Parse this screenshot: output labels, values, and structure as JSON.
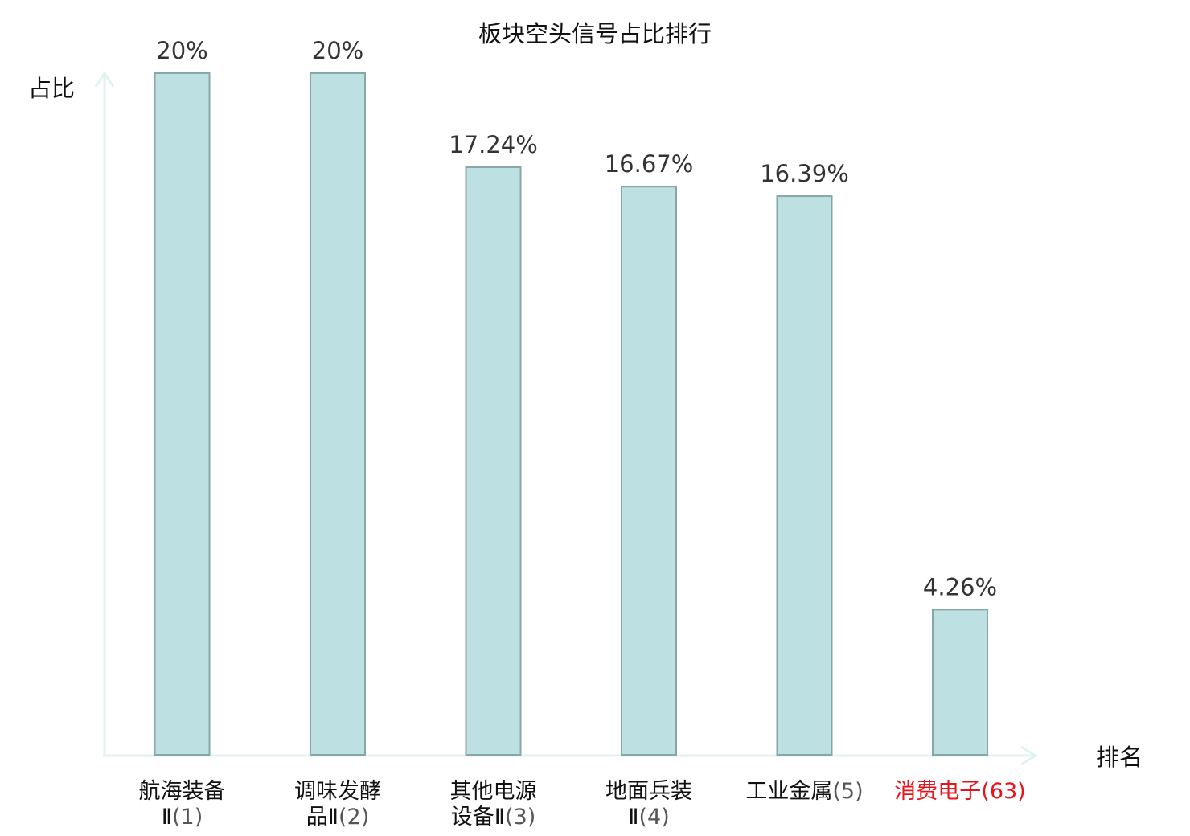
{
  "colors": {
    "bar_fill": "#bde1e3",
    "bar_stroke": "#86a6a8",
    "axis": "#e1f3f1",
    "text": "#111111",
    "value_text": "#333333",
    "rank_text": "#555555",
    "highlight": "#e8141c"
  },
  "chart_data": {
    "type": "bar",
    "title": "板块空头信号占比排行",
    "ylabel": "占比",
    "xlabel": "排名",
    "ylim": [
      0,
      20
    ],
    "grid": false,
    "categories": [
      {
        "name_lines": [
          "航海装备",
          "Ⅱ"
        ],
        "rank": "(1)",
        "highlight": false
      },
      {
        "name_lines": [
          "调味发酵",
          "品Ⅱ"
        ],
        "rank": "(2)",
        "highlight": false
      },
      {
        "name_lines": [
          "其他电源",
          "设备Ⅱ"
        ],
        "rank": "(3)",
        "highlight": false
      },
      {
        "name_lines": [
          "地面兵装",
          "Ⅱ"
        ],
        "rank": "(4)",
        "highlight": false
      },
      {
        "name_lines": [
          "工业金属"
        ],
        "rank": "(5)",
        "highlight": false
      },
      {
        "name_lines": [
          "消费电子"
        ],
        "rank": "(63)",
        "highlight": true
      }
    ],
    "values": [
      20,
      20,
      17.24,
      16.67,
      16.39,
      4.26
    ],
    "value_labels": [
      "20%",
      "20%",
      "17.24%",
      "16.67%",
      "16.39%",
      "4.26%"
    ]
  }
}
